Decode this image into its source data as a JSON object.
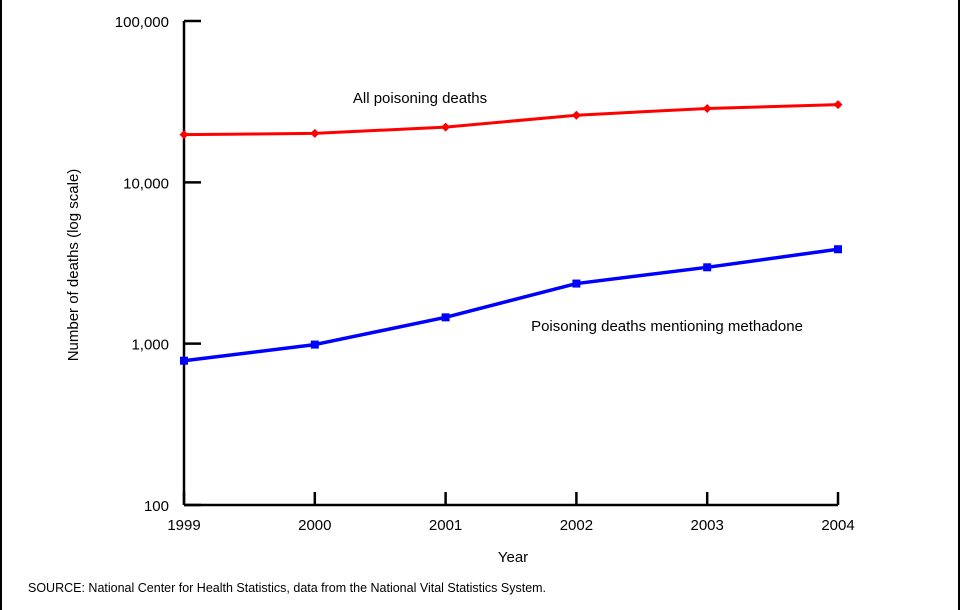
{
  "chart_data": {
    "type": "line",
    "y_scale": "log",
    "x": [
      "1999",
      "2000",
      "2001",
      "2002",
      "2003",
      "2004"
    ],
    "ylabel": "Number of deaths (log scale)",
    "xlabel": "Year",
    "ylim": [
      100,
      100000
    ],
    "y_ticks": [
      {
        "value": 100,
        "label": "100"
      },
      {
        "value": 1000,
        "label": "1,000"
      },
      {
        "value": 10000,
        "label": "10,000"
      },
      {
        "value": 100000,
        "label": "100,000"
      }
    ],
    "grid": false,
    "series": [
      {
        "name": "All poisoning deaths",
        "color": "#ff0000",
        "marker": "diamond",
        "values": [
          19741,
          20100,
          21990,
          26070,
          28700,
          30300
        ]
      },
      {
        "name": "Poisoning deaths mentioning methadone",
        "color": "#0000ff",
        "marker": "square",
        "values": [
          784,
          987,
          1456,
          2358,
          2974,
          3849
        ]
      }
    ]
  },
  "source_note": "SOURCE: National Center for Health Statistics, data from the National Vital Statistics System."
}
